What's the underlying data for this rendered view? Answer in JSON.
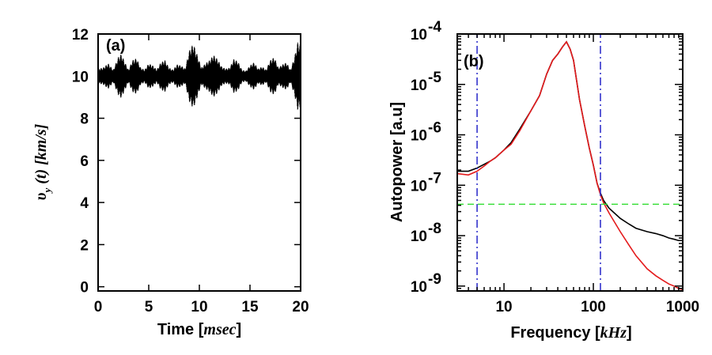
{
  "chart_data": [
    {
      "panel": "(a)",
      "type": "line",
      "xlabel_main": "Time [",
      "xlabel_unit": "msec",
      "xlabel_close": "]",
      "ylabel_main": "υ",
      "ylabel_sub": "y",
      "ylabel_arg": " (t) [",
      "ylabel_unit": "km/s",
      "ylabel_close": "]",
      "xlim": [
        0,
        20
      ],
      "ylim": [
        -0.2,
        12
      ],
      "xticks": [
        0,
        5,
        10,
        15,
        20
      ],
      "yticks": [
        0,
        2,
        4,
        6,
        8,
        10,
        12
      ],
      "grid": false,
      "series": [
        {
          "color": "#000000",
          "baseline": 10.0,
          "envelope_t": [
            0,
            0.5,
            1.0,
            1.5,
            2.0,
            2.3,
            2.6,
            3.0,
            3.4,
            3.8,
            4.2,
            4.6,
            5.0,
            5.4,
            5.8,
            6.2,
            6.6,
            7.0,
            7.4,
            7.8,
            8.2,
            8.6,
            9.0,
            9.4,
            9.8,
            10.2,
            10.6,
            11.0,
            11.4,
            11.8,
            12.2,
            12.6,
            13.0,
            13.4,
            13.8,
            14.2,
            14.6,
            15.0,
            15.4,
            15.8,
            16.2,
            16.6,
            17.0,
            17.4,
            17.8,
            18.2,
            18.6,
            19.0,
            19.4,
            19.7,
            20.0
          ],
          "envelope_amp": [
            0.35,
            0.4,
            0.6,
            0.3,
            0.9,
            1.05,
            0.7,
            0.3,
            0.75,
            0.85,
            0.4,
            0.3,
            0.6,
            0.5,
            0.3,
            0.65,
            0.75,
            0.4,
            0.3,
            0.55,
            0.5,
            0.35,
            1.2,
            1.55,
            1.0,
            0.4,
            0.6,
            0.75,
            1.0,
            0.8,
            0.45,
            0.35,
            0.4,
            0.8,
            0.7,
            0.3,
            0.25,
            0.5,
            0.65,
            0.35,
            0.45,
            0.3,
            0.75,
            0.9,
            0.4,
            0.55,
            0.65,
            0.3,
            0.9,
            1.6,
            1.5
          ]
        }
      ]
    },
    {
      "panel": "(b)",
      "type": "line",
      "xlabel_main": "Frequency [",
      "xlabel_unit": "kHz",
      "xlabel_close": "]",
      "ylabel": "Autopower [a.u]",
      "xscale": "log",
      "yscale": "log",
      "xlim": [
        3,
        1000
      ],
      "ylim": [
        8e-10,
        0.0001
      ],
      "xticks": [
        10,
        100,
        1000
      ],
      "xtick_labels": [
        "10",
        "100",
        "1000"
      ],
      "yticks": [
        1e-09,
        1e-08,
        1e-07,
        1e-06,
        1e-05,
        0.0001
      ],
      "ytick_base": "10",
      "ytick_exps": [
        "-9",
        "-8",
        "-7",
        "-6",
        "-5",
        "-4"
      ],
      "grid": false,
      "series": [
        {
          "color": "#000000",
          "x": [
            3,
            4,
            5,
            6,
            7,
            8,
            10,
            12,
            15,
            20,
            25,
            30,
            35,
            40,
            45,
            50,
            55,
            60,
            70,
            80,
            90,
            100,
            110,
            120,
            130,
            150,
            200,
            250,
            300,
            400,
            500,
            600,
            700,
            800,
            900,
            1000
          ],
          "y": [
            1.9e-07,
            1.9e-07,
            2.2e-07,
            2.6e-07,
            3e-07,
            3.5e-07,
            5e-07,
            7e-07,
            1.3e-06,
            3e-06,
            6e-06,
            1.6e-05,
            3e-05,
            4e-05,
            5.5e-05,
            7e-05,
            5e-05,
            3e-05,
            5e-06,
            1.5e-06,
            5.5e-07,
            2.5e-07,
            1.1e-07,
            7e-08,
            5e-08,
            3.5e-08,
            2.2e-08,
            1.7e-08,
            1.4e-08,
            1.2e-08,
            1.1e-08,
            1e-08,
            9e-09,
            8.5e-09,
            8e-09,
            8e-09
          ]
        },
        {
          "color": "#e41a1c",
          "x": [
            3,
            4,
            5,
            6,
            7,
            8,
            10,
            12,
            15,
            20,
            25,
            30,
            35,
            40,
            45,
            50,
            55,
            60,
            70,
            80,
            90,
            100,
            110,
            120,
            130,
            150,
            200,
            250,
            300,
            400,
            500,
            600,
            700,
            800,
            900,
            1000
          ],
          "y": [
            1.7e-07,
            1.6e-07,
            1.9e-07,
            2.4e-07,
            3e-07,
            3.5e-07,
            5e-07,
            6.5e-07,
            1.2e-06,
            3e-06,
            6e-06,
            1.6e-05,
            3e-05,
            4e-05,
            5.5e-05,
            7e-05,
            5e-05,
            3e-05,
            5e-06,
            1.5e-06,
            5.5e-07,
            2.5e-07,
            1.1e-07,
            6.5e-08,
            4.5e-08,
            2.8e-08,
            1.2e-08,
            6.5e-09,
            4e-09,
            2.2e-09,
            1.6e-09,
            1.3e-09,
            1.1e-09,
            1e-09,
            9e-10,
            8.5e-10
          ]
        }
      ],
      "vlines": [
        {
          "x": 5,
          "color": "#3333cc",
          "style": "dash-dot"
        },
        {
          "x": 120,
          "color": "#3333cc",
          "style": "dash-dot"
        }
      ],
      "hlines": [
        {
          "y": 4.2e-08,
          "color": "#33dd33",
          "style": "dashed"
        }
      ]
    }
  ]
}
